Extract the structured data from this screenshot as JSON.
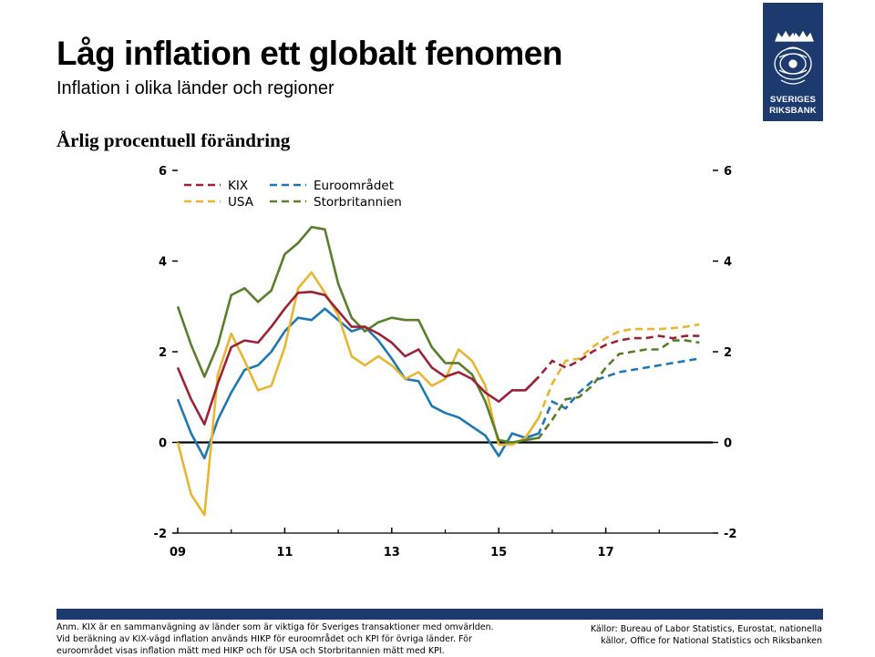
{
  "title": "Låg inflation ett globalt fenomen",
  "subtitle": "Inflation i olika länder och regioner",
  "logo": {
    "line1": "SVERIGES",
    "line2": "RIKSBANK",
    "bg_color": "#1c3a6e"
  },
  "footer": {
    "note": "Anm. KIX är en sammanvägning av länder som är viktiga för Sveriges transaktioner med omvärlden. Vid beräkning av KIX-vägd inflation används HIKP för euroområdet och KPI för övriga länder. För euroområdet visas inflation mätt med HIKP och för USA och Storbritannien mätt med KPI.",
    "sources": "Källor: Bureau of Labor Statistics, Eurostat, nationella källor, Office for National Statistics och Riksbanken"
  },
  "chart_data": {
    "type": "line",
    "ylabel": "Årlig procentuell förändring",
    "ylim": [
      -2,
      6
    ],
    "yticks": [
      -2,
      0,
      2,
      4,
      6
    ],
    "xlim": [
      2009.0,
      2019.0
    ],
    "xticks": [
      {
        "value": 2009,
        "label": "09"
      },
      {
        "value": 2011,
        "label": "11"
      },
      {
        "value": 2013,
        "label": "13"
      },
      {
        "value": 2015,
        "label": "15"
      },
      {
        "value": 2017,
        "label": "17"
      }
    ],
    "forecast_note": "dashed segments = forecast",
    "x": [
      2009.0,
      2009.25,
      2009.5,
      2009.75,
      2010.0,
      2010.25,
      2010.5,
      2010.75,
      2011.0,
      2011.25,
      2011.5,
      2011.75,
      2012.0,
      2012.25,
      2012.5,
      2012.75,
      2013.0,
      2013.25,
      2013.5,
      2013.75,
      2014.0,
      2014.25,
      2014.5,
      2014.75,
      2015.0,
      2015.25,
      2015.5,
      2015.75,
      2016.0,
      2016.25,
      2016.5,
      2016.75,
      2017.0,
      2017.25,
      2017.5,
      2017.75,
      2018.0,
      2018.25,
      2018.5,
      2018.75
    ],
    "series": [
      {
        "name": "KIX",
        "color": "#9b2335",
        "forecast_start": 2015.75,
        "values": [
          1.65,
          0.95,
          0.4,
          1.3,
          2.1,
          2.25,
          2.2,
          2.55,
          2.95,
          3.3,
          3.32,
          3.25,
          2.9,
          2.55,
          2.55,
          2.4,
          2.2,
          1.9,
          2.05,
          1.65,
          1.45,
          1.55,
          1.4,
          1.1,
          0.9,
          1.15,
          1.15,
          1.45,
          1.8,
          1.65,
          1.8,
          2.0,
          2.15,
          2.25,
          2.3,
          2.3,
          2.35,
          2.3,
          2.35,
          2.35
        ]
      },
      {
        "name": "Euroområdet",
        "color": "#1f78b4",
        "forecast_start": 2015.75,
        "values": [
          0.95,
          0.2,
          -0.35,
          0.5,
          1.1,
          1.6,
          1.7,
          2.0,
          2.45,
          2.75,
          2.7,
          2.95,
          2.7,
          2.45,
          2.55,
          2.25,
          1.85,
          1.4,
          1.35,
          0.8,
          0.65,
          0.55,
          0.35,
          0.15,
          -0.3,
          0.2,
          0.1,
          0.2,
          0.9,
          0.75,
          1.1,
          1.35,
          1.45,
          1.55,
          1.6,
          1.65,
          1.7,
          1.75,
          1.8,
          1.85
        ]
      },
      {
        "name": "USA",
        "color": "#e8b631",
        "forecast_start": 2015.75,
        "values": [
          0.0,
          -1.15,
          -1.6,
          1.5,
          2.4,
          1.8,
          1.15,
          1.25,
          2.1,
          3.4,
          3.75,
          3.3,
          2.8,
          1.9,
          1.7,
          1.9,
          1.7,
          1.4,
          1.55,
          1.25,
          1.4,
          2.05,
          1.8,
          1.25,
          -0.05,
          -0.05,
          0.1,
          0.55,
          1.3,
          1.8,
          1.85,
          2.1,
          2.3,
          2.45,
          2.5,
          2.5,
          2.5,
          2.52,
          2.55,
          2.6
        ]
      },
      {
        "name": "Storbritannien",
        "color": "#5a7f2b",
        "forecast_start": 2015.75,
        "values": [
          3.0,
          2.15,
          1.45,
          2.15,
          3.25,
          3.4,
          3.1,
          3.35,
          4.15,
          4.4,
          4.75,
          4.7,
          3.5,
          2.75,
          2.45,
          2.65,
          2.75,
          2.7,
          2.7,
          2.1,
          1.75,
          1.75,
          1.5,
          0.9,
          0.05,
          0.0,
          0.05,
          0.1,
          0.5,
          0.95,
          1.0,
          1.25,
          1.65,
          1.95,
          2.0,
          2.05,
          2.05,
          2.25,
          2.25,
          2.2
        ]
      }
    ],
    "legend": "top-left, two columns"
  }
}
